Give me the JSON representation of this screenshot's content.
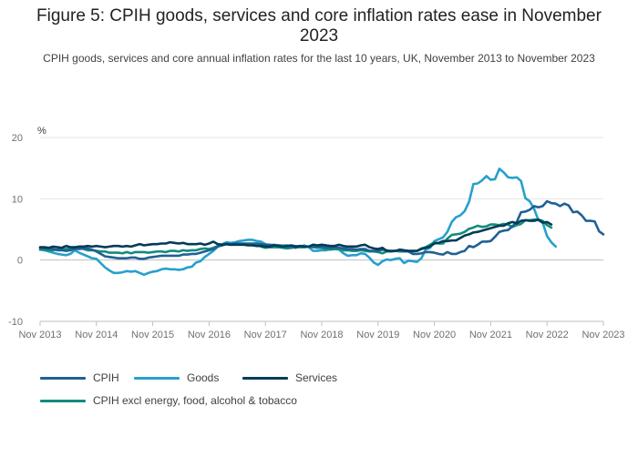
{
  "title": "Figure 5: CPIH goods, services and core inflation rates ease in November 2023",
  "subtitle": "CPIH goods, services and core annual inflation rates for the last 10 years, UK, November 2013 to November 2023",
  "chart_data": {
    "type": "line",
    "ylabel": "%",
    "ylim": [
      -10,
      20
    ],
    "yticks": [
      -10,
      0,
      10,
      20
    ],
    "xticks": [
      "Nov 2013",
      "Nov 2014",
      "Nov 2015",
      "Nov 2016",
      "Nov 2017",
      "Nov 2018",
      "Nov 2019",
      "Nov 2020",
      "Nov 2021",
      "Nov 2022",
      "Nov 2023"
    ],
    "x_start": "Nov 2013",
    "x_end": "Nov 2023",
    "grid": true,
    "legend_position": "bottom",
    "series": [
      {
        "name": "CPIH",
        "color": "#206095",
        "values": [
          2.0,
          1.9,
          1.9,
          1.8,
          1.6,
          1.6,
          1.5,
          1.6,
          1.9,
          1.8,
          1.9,
          1.9,
          1.7,
          1.4,
          1.0,
          0.6,
          0.5,
          0.4,
          0.3,
          0.3,
          0.3,
          0.4,
          0.4,
          0.2,
          0.2,
          0.4,
          0.5,
          0.6,
          0.7,
          0.7,
          0.7,
          0.7,
          0.7,
          0.9,
          0.9,
          1.0,
          1.0,
          1.2,
          1.4,
          1.6,
          1.8,
          2.2,
          2.4,
          2.7,
          2.6,
          2.7,
          2.7,
          2.7,
          2.7,
          2.7,
          2.7,
          2.6,
          2.5,
          2.5,
          2.4,
          2.4,
          2.2,
          2.2,
          2.2,
          2.0,
          2.3,
          2.2,
          2.2,
          2.2,
          2.2,
          2.2,
          2.1,
          2.0,
          2.1,
          2.0,
          1.9,
          1.8,
          1.8,
          1.7,
          1.8,
          1.8,
          1.5,
          1.5,
          1.5,
          1.7,
          1.6,
          1.4,
          1.5,
          1.6,
          1.4,
          1.4,
          1.0,
          1.0,
          1.1,
          1.3,
          1.3,
          1.2,
          1.0,
          0.9,
          1.3,
          1.0,
          1.0,
          1.3,
          1.5,
          2.3,
          2.1,
          2.5,
          3.0,
          3.0,
          3.1,
          3.8,
          4.6,
          4.8,
          4.9,
          5.5,
          6.2,
          7.8,
          7.9,
          8.2,
          8.8,
          8.6,
          8.8,
          9.6,
          9.3,
          9.2,
          8.8,
          9.2,
          8.9,
          7.8,
          7.9,
          7.3,
          6.4,
          6.4,
          6.3,
          4.7,
          4.2
        ]
      },
      {
        "name": "Goods",
        "color": "#27a0cc",
        "values": [
          1.7,
          1.6,
          1.4,
          1.2,
          1.0,
          0.9,
          0.8,
          1.0,
          1.6,
          1.2,
          0.9,
          0.6,
          0.3,
          0.2,
          -0.5,
          -1.2,
          -1.7,
          -2.1,
          -2.1,
          -2.0,
          -1.8,
          -1.9,
          -1.8,
          -2.1,
          -2.4,
          -2.1,
          -1.9,
          -1.8,
          -1.5,
          -1.4,
          -1.5,
          -1.5,
          -1.6,
          -1.5,
          -1.2,
          -1.1,
          -0.4,
          -0.2,
          0.5,
          1.0,
          1.5,
          2.2,
          2.6,
          2.9,
          2.8,
          2.9,
          3.1,
          3.2,
          3.3,
          3.3,
          3.1,
          3.0,
          2.6,
          2.4,
          2.5,
          2.4,
          2.4,
          2.4,
          2.3,
          2.3,
          2.2,
          2.4,
          2.1,
          1.5,
          1.5,
          1.6,
          1.6,
          1.8,
          1.8,
          1.7,
          1.1,
          0.7,
          0.8,
          0.8,
          1.1,
          1.0,
          0.4,
          -0.4,
          -0.8,
          -0.2,
          0.1,
          0.0,
          0.2,
          0.3,
          -0.5,
          -0.1,
          -0.2,
          -0.3,
          0.3,
          1.7,
          2.0,
          3.1,
          3.4,
          3.7,
          4.6,
          6.2,
          7.0,
          7.3,
          8.0,
          9.5,
          12.4,
          12.5,
          13.0,
          13.7,
          13.1,
          13.2,
          14.9,
          14.3,
          13.5,
          13.4,
          13.5,
          12.9,
          10.1,
          9.6,
          8.4,
          6.5,
          6.1,
          3.9,
          2.9,
          2.2
        ]
      },
      {
        "name": "Services",
        "color": "#003c57",
        "values": [
          2.1,
          2.1,
          2.0,
          2.2,
          2.1,
          2.0,
          2.3,
          2.1,
          2.1,
          2.2,
          2.2,
          2.3,
          2.2,
          2.3,
          2.2,
          2.1,
          2.2,
          2.3,
          2.3,
          2.2,
          2.3,
          2.2,
          2.4,
          2.6,
          2.4,
          2.5,
          2.6,
          2.6,
          2.7,
          2.7,
          2.9,
          2.8,
          2.7,
          2.8,
          2.6,
          2.6,
          2.6,
          2.7,
          2.5,
          2.7,
          3.0,
          2.6,
          2.5,
          2.6,
          2.5,
          2.5,
          2.5,
          2.5,
          2.4,
          2.4,
          2.3,
          2.3,
          2.2,
          2.2,
          2.4,
          2.3,
          2.2,
          2.3,
          2.4,
          2.2,
          2.3,
          2.2,
          2.2,
          2.5,
          2.4,
          2.5,
          2.4,
          2.3,
          2.3,
          2.5,
          2.3,
          2.2,
          2.2,
          2.2,
          2.4,
          2.5,
          2.1,
          1.9,
          1.8,
          2.0,
          1.5,
          1.5,
          1.5,
          1.7,
          1.6,
          1.5,
          1.5,
          1.5,
          1.8,
          2.0,
          2.2,
          2.7,
          2.8,
          3.1,
          3.1,
          3.2,
          3.2,
          3.6,
          4.0,
          4.2,
          4.5,
          4.6,
          4.8,
          5.0,
          5.2,
          5.4,
          5.6,
          5.6,
          6.0,
          6.2,
          6.0,
          6.4,
          6.5,
          6.4,
          6.4,
          6.6,
          6.1,
          6.2,
          5.8
        ]
      },
      {
        "name": "CPIH excl energy, food, alcohol & tobacco",
        "color": "#118c7b",
        "values": [
          1.7,
          1.7,
          1.6,
          1.6,
          1.7,
          1.8,
          1.8,
          1.9,
          1.7,
          2.0,
          1.8,
          1.6,
          1.6,
          1.5,
          1.4,
          1.4,
          1.2,
          1.2,
          1.2,
          1.1,
          1.3,
          1.1,
          1.3,
          1.3,
          1.3,
          1.2,
          1.3,
          1.4,
          1.4,
          1.3,
          1.5,
          1.5,
          1.4,
          1.6,
          1.5,
          1.6,
          1.6,
          1.8,
          1.9,
          1.8,
          2.0,
          2.3,
          2.4,
          2.6,
          2.5,
          2.7,
          2.6,
          2.6,
          2.5,
          2.4,
          2.5,
          2.2,
          2.0,
          2.1,
          2.1,
          2.1,
          2.0,
          1.9,
          2.0,
          2.1,
          2.1,
          2.1,
          2.2,
          2.1,
          2.0,
          2.0,
          1.8,
          1.7,
          1.8,
          1.8,
          1.6,
          1.6,
          1.5,
          1.5,
          1.6,
          1.5,
          1.4,
          1.4,
          1.3,
          1.1,
          1.4,
          1.4,
          1.5,
          1.4,
          1.4,
          1.4,
          1.4,
          1.5,
          1.9,
          2.1,
          2.5,
          2.9,
          2.7,
          2.7,
          3.5,
          4.1,
          4.2,
          4.3,
          4.6,
          5.1,
          5.3,
          5.6,
          5.4,
          5.5,
          5.8,
          5.8,
          5.7,
          5.9,
          5.8,
          5.4,
          5.7,
          5.9,
          6.5,
          6.5,
          6.6,
          6.6,
          6.4,
          5.7,
          5.3
        ]
      }
    ]
  }
}
